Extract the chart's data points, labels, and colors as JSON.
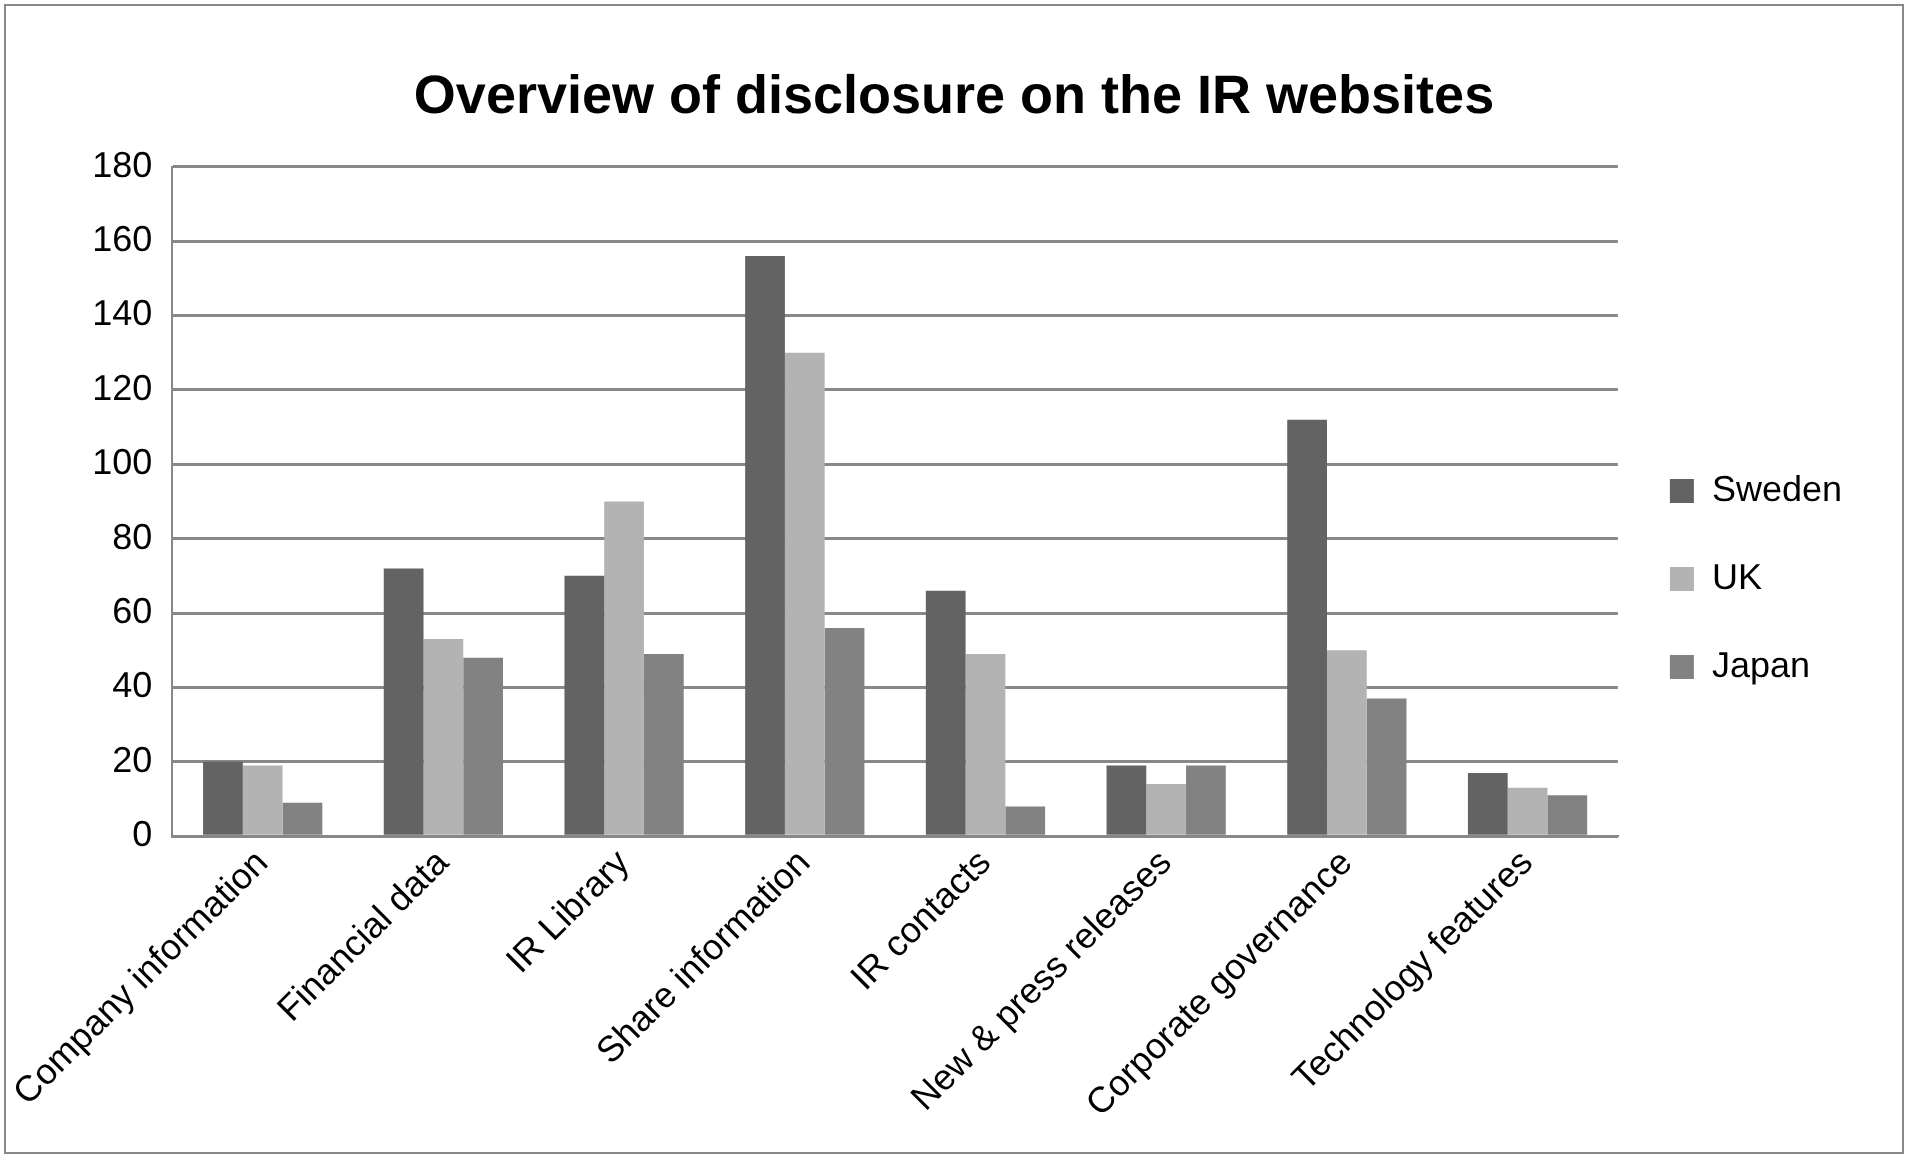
{
  "chart_data": {
    "type": "bar",
    "title": "Overview of disclosure on the IR websites",
    "categories": [
      "Company information",
      "Financial data",
      "IR Library",
      "Share information",
      "IR contacts",
      "New & press releases",
      "Corporate governance",
      "Technology features"
    ],
    "series": [
      {
        "name": "Sweden",
        "color": "#636363",
        "values": [
          20,
          72,
          70,
          156,
          66,
          19,
          112,
          17
        ]
      },
      {
        "name": "UK",
        "color": "#b3b3b3",
        "values": [
          19,
          53,
          90,
          130,
          49,
          14,
          50,
          13
        ]
      },
      {
        "name": "Japan",
        "color": "#828282",
        "values": [
          9,
          48,
          49,
          56,
          8,
          19,
          37,
          11
        ]
      }
    ],
    "ylim": [
      0,
      180
    ],
    "yticks": [
      0,
      20,
      40,
      60,
      80,
      100,
      120,
      140,
      160,
      180
    ],
    "grid": "y",
    "legend": "right"
  }
}
